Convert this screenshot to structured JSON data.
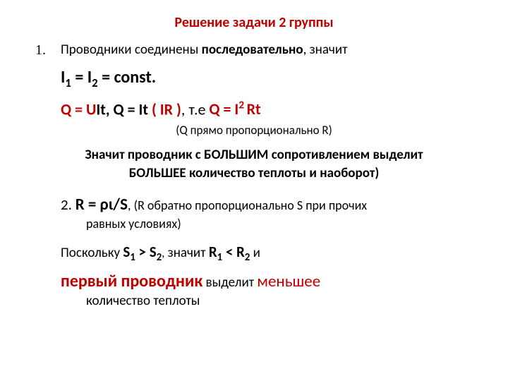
{
  "colors": {
    "red": "#c00000",
    "black": "#000000"
  },
  "title": "Решение задачи 2 группы",
  "item1_num": "1.",
  "item1_text_a": "Проводники соединены ",
  "item1_text_b": "последовательно",
  "item1_text_c": ", значит",
  "formula_I_a": "I",
  "formula_I_sub1": "1",
  "formula_I_b": " = I",
  "formula_I_sub2": "2",
  "formula_I_c": " = const.",
  "q_line_a": "Q = U",
  "q_line_b": "It, Q = It ",
  "q_line_c": "( IR )",
  "q_line_d": ", т.е    ",
  "q_line_e": "Q = I",
  "q_line_sup": "2 ",
  "q_line_f": "Rt",
  "paren_note": "(Q прямо пропорционально R)",
  "big_block": "Значит проводник с БОЛЬШИМ сопротивлением выделит БОЛЬШЕЕ количество теплоты и наоборот)",
  "item2_a": "2. ",
  "item2_b": "R = ρι/S",
  "item2_c": ", (R обратно пропорционально S при прочих",
  "item2_d": "равных условиях)",
  "s_a": "Поскольку ",
  "s_b": "S",
  "s_sub1": "1",
  "s_c": " > S",
  "s_sub2": "2",
  "s_d": ",",
  "s_e": "  значит ",
  "s_f": "R",
  "s_sub1b": "1",
  "s_g": " < R",
  "s_sub2b": "2",
  "s_h": "  и",
  "final_a": "первый проводник",
  "final_b": " выделит ",
  "final_c": "меньшее",
  "final_d": "количество теплоты"
}
